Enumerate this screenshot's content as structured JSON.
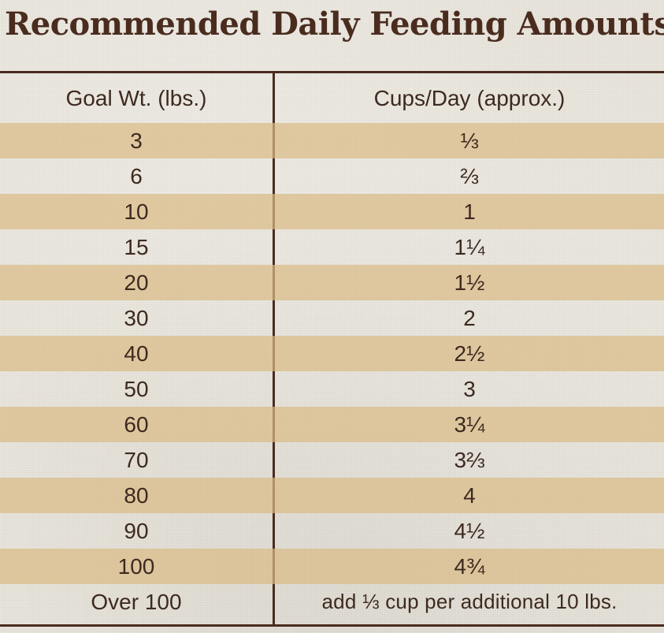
{
  "page": {
    "title": "Recommended Daily Feeding Amounts:"
  },
  "chart_data": {
    "type": "table",
    "columns": [
      "Goal Wt. (lbs.)",
      "Cups/Day (approx.)"
    ],
    "rows": [
      [
        "3",
        "⅓"
      ],
      [
        "6",
        "⅔"
      ],
      [
        "10",
        "1"
      ],
      [
        "15",
        "1¼"
      ],
      [
        "20",
        "1½"
      ],
      [
        "30",
        "2"
      ],
      [
        "40",
        "2½"
      ],
      [
        "50",
        "3"
      ],
      [
        "60",
        "3¼"
      ],
      [
        "70",
        "3⅔"
      ],
      [
        "80",
        "4"
      ],
      [
        "90",
        "4½"
      ],
      [
        "100",
        "4¾"
      ],
      [
        "Over 100",
        "add ⅓ cup per additional 10 lbs."
      ]
    ]
  },
  "colors": {
    "rule": "#4a2c1f",
    "text": "#3d2a1f",
    "stripe": "#dabb84",
    "background": "#e9e5dc"
  }
}
